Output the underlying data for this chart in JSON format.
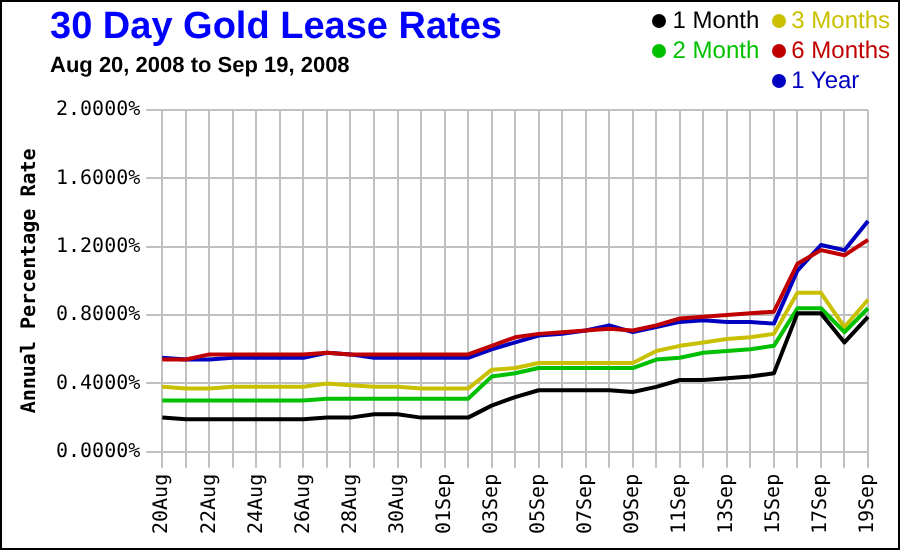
{
  "chart_data": {
    "type": "line",
    "title": "30 Day Gold Lease Rates",
    "subtitle": "Aug 20, 2008 to Sep 19, 2008",
    "ylabel": "Annual Percentage Rate",
    "categories": [
      "20Aug",
      null,
      "22Aug",
      null,
      "24Aug",
      null,
      "26Aug",
      null,
      "28Aug",
      null,
      "30Aug",
      null,
      "01Sep",
      null,
      "03Sep",
      null,
      "05Sep",
      null,
      "07Sep",
      null,
      "09Sep",
      null,
      "11Sep",
      null,
      "13Sep",
      null,
      "15Sep",
      null,
      "17Sep",
      null,
      "19Sep"
    ],
    "series": [
      {
        "name": "1 Month",
        "color": "#000000",
        "values": [
          0.2,
          0.19,
          0.19,
          0.19,
          0.19,
          0.19,
          0.19,
          0.2,
          0.2,
          0.22,
          0.22,
          0.2,
          0.2,
          0.2,
          0.27,
          0.32,
          0.36,
          0.36,
          0.36,
          0.36,
          0.35,
          0.38,
          0.42,
          0.42,
          0.43,
          0.44,
          0.46,
          0.81,
          0.81,
          0.64,
          0.79
        ]
      },
      {
        "name": "2 Month",
        "color": "#00c000",
        "values": [
          0.3,
          0.3,
          0.3,
          0.3,
          0.3,
          0.3,
          0.3,
          0.31,
          0.31,
          0.31,
          0.31,
          0.31,
          0.31,
          0.31,
          0.44,
          0.46,
          0.49,
          0.49,
          0.49,
          0.49,
          0.49,
          0.54,
          0.55,
          0.58,
          0.59,
          0.6,
          0.62,
          0.84,
          0.84,
          0.7,
          0.84
        ]
      },
      {
        "name": "3 Months",
        "color": "#c8c000",
        "values": [
          0.38,
          0.37,
          0.37,
          0.38,
          0.38,
          0.38,
          0.38,
          0.4,
          0.39,
          0.38,
          0.38,
          0.37,
          0.37,
          0.37,
          0.48,
          0.49,
          0.52,
          0.52,
          0.52,
          0.52,
          0.52,
          0.59,
          0.62,
          0.64,
          0.66,
          0.67,
          0.69,
          0.93,
          0.93,
          0.73,
          0.89
        ]
      },
      {
        "name": "6 Months",
        "color": "#c00000",
        "values": [
          0.54,
          0.54,
          0.57,
          0.57,
          0.57,
          0.57,
          0.57,
          0.58,
          0.57,
          0.57,
          0.57,
          0.57,
          0.57,
          0.57,
          0.62,
          0.67,
          0.69,
          0.7,
          0.71,
          0.72,
          0.71,
          0.74,
          0.78,
          0.79,
          0.8,
          0.81,
          0.82,
          1.1,
          1.18,
          1.15,
          1.24
        ]
      },
      {
        "name": "1 Year",
        "color": "#0000c0",
        "values": [
          0.55,
          0.54,
          0.54,
          0.55,
          0.55,
          0.55,
          0.55,
          0.58,
          0.57,
          0.55,
          0.55,
          0.55,
          0.55,
          0.55,
          0.6,
          0.64,
          0.68,
          0.69,
          0.71,
          0.74,
          0.7,
          0.73,
          0.76,
          0.77,
          0.76,
          0.76,
          0.75,
          1.06,
          1.21,
          1.18,
          1.35
        ]
      }
    ],
    "ylim": [
      0,
      2
    ],
    "yticks": [
      {
        "value": 0,
        "label": "0.0000%"
      },
      {
        "value": 0.4,
        "label": "0.4000%"
      },
      {
        "value": 0.8,
        "label": "0.8000%"
      },
      {
        "value": 1.2,
        "label": "1.2000%"
      },
      {
        "value": 1.6,
        "label": "1.6000%"
      },
      {
        "value": 2,
        "label": "2.0000%"
      }
    ],
    "grid": true,
    "legend": "top right",
    "marker": "none",
    "line_style": "solid"
  }
}
